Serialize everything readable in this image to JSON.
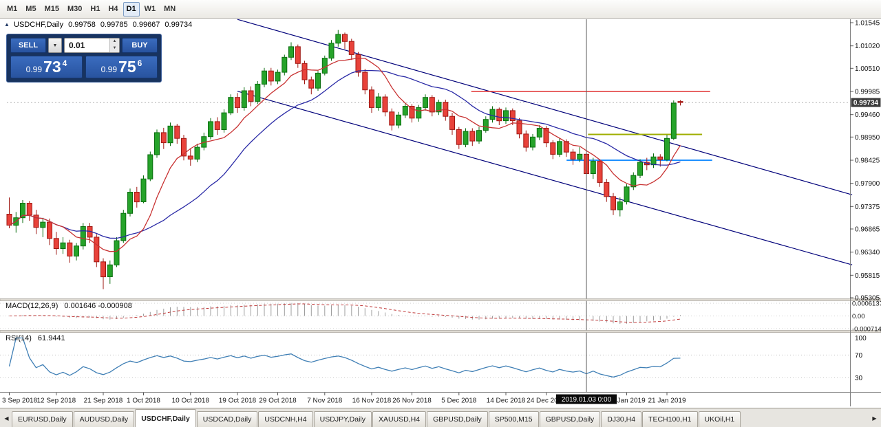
{
  "toolbar": {
    "timeframes": [
      {
        "label": "M1"
      },
      {
        "label": "M5"
      },
      {
        "label": "M15"
      },
      {
        "label": "M30"
      },
      {
        "label": "H1"
      },
      {
        "label": "H4"
      },
      {
        "label": "D1"
      },
      {
        "label": "W1"
      },
      {
        "label": "MN"
      }
    ],
    "active": "D1"
  },
  "chart_header": {
    "collapse_icon": "▲",
    "symbol": "USDCHF,Daily",
    "open": "0.99758",
    "high": "0.99785",
    "low": "0.99667",
    "close": "0.99734"
  },
  "trade_panel": {
    "sell_label": "SELL",
    "buy_label": "BUY",
    "volume": "0.01",
    "dropdown_icon": "▼",
    "spin_up_icon": "▲",
    "spin_down_icon": "▼",
    "sell_price": {
      "small": "0.99",
      "big": "73",
      "sup": "4"
    },
    "buy_price": {
      "small": "0.99",
      "big": "75",
      "sup": "6"
    }
  },
  "indicators": {
    "macd": {
      "label": "MACD(12,26,9)",
      "values": "0.001646 -0.000908",
      "axis_labels": [
        "0.0006137",
        "0.00",
        "-0.0007142"
      ],
      "fast": 12,
      "slow": 26,
      "signal": 9
    },
    "rsi": {
      "label": "RSI(14)",
      "value": "61.9441",
      "axis_labels": [
        "100",
        "70",
        "30"
      ],
      "period": 14
    }
  },
  "price_axis": {
    "labels": [
      "1.01545",
      "1.01020",
      "1.00510",
      "0.99985",
      "0.99460",
      "0.98950",
      "0.98425",
      "0.97900",
      "0.97375",
      "0.96865",
      "0.96340",
      "0.95815",
      "0.95305"
    ],
    "current": "0.99734"
  },
  "time_axis": {
    "ticks": [
      {
        "label": "3 Sep 2018",
        "i": 0
      },
      {
        "label": "12 Sep 2018",
        "i": 7
      },
      {
        "label": "21 Sep 2018",
        "i": 14
      },
      {
        "label": "1 Oct 2018",
        "i": 20
      },
      {
        "label": "10 Oct 2018",
        "i": 27
      },
      {
        "label": "19 Oct 2018",
        "i": 34
      },
      {
        "label": "29 Oct 2018",
        "i": 40
      },
      {
        "label": "7 Nov 2018",
        "i": 47
      },
      {
        "label": "16 Nov 2018",
        "i": 54
      },
      {
        "label": "26 Nov 2018",
        "i": 60
      },
      {
        "label": "5 Dec 2018",
        "i": 67
      },
      {
        "label": "14 Dec 2018",
        "i": 74
      },
      {
        "label": "24 Dec 2018",
        "i": 80
      },
      {
        "label": "11 Jan 2019",
        "i": 92
      },
      {
        "label": "21 Jan 2019",
        "i": 98
      }
    ],
    "crosshair": {
      "label": "2019.01.03 0:00",
      "i": 86
    }
  },
  "tabs": {
    "left_arrow": "◀",
    "right_arrow": "▶",
    "items": [
      {
        "label": "EURUSD,Daily",
        "active": false
      },
      {
        "label": "AUDUSD,Daily",
        "active": false
      },
      {
        "label": "USDCHF,Daily",
        "active": true
      },
      {
        "label": "USDCAD,Daily",
        "active": false
      },
      {
        "label": "USDCNH,H4",
        "active": false
      },
      {
        "label": "USDJPY,Daily",
        "active": false
      },
      {
        "label": "XAUUSD,H4",
        "active": false
      },
      {
        "label": "GBPUSD,Daily",
        "active": false
      },
      {
        "label": "SP500,M15",
        "active": false
      },
      {
        "label": "GBPUSD,Daily",
        "active": false
      },
      {
        "label": "DJ30,H4",
        "active": false
      },
      {
        "label": "TECH100,H1",
        "active": false
      },
      {
        "label": "UKOil,H1",
        "active": false
      }
    ]
  },
  "chart_data": {
    "type": "candlestick",
    "symbol": "USDCHF",
    "timeframe": "Daily",
    "ylim": [
      0.95305,
      1.01545
    ],
    "colors": {
      "up": "#26a32a",
      "up_border": "#0b6e10",
      "down": "#e8423a",
      "down_border": "#9e1712",
      "bg": "#ffffff"
    },
    "candles": [
      [
        0.972,
        0.9758,
        0.9688,
        0.9695
      ],
      [
        0.9695,
        0.9725,
        0.9678,
        0.9712
      ],
      [
        0.9712,
        0.9752,
        0.97,
        0.9745
      ],
      [
        0.9745,
        0.975,
        0.9705,
        0.9718
      ],
      [
        0.9718,
        0.973,
        0.9675,
        0.969
      ],
      [
        0.969,
        0.9712,
        0.9668,
        0.9702
      ],
      [
        0.9702,
        0.971,
        0.965,
        0.9665
      ],
      [
        0.9665,
        0.968,
        0.9628,
        0.9642
      ],
      [
        0.9642,
        0.9668,
        0.963,
        0.9655
      ],
      [
        0.9655,
        0.9662,
        0.961,
        0.9625
      ],
      [
        0.9625,
        0.9655,
        0.9615,
        0.9648
      ],
      [
        0.9648,
        0.97,
        0.964,
        0.9692
      ],
      [
        0.9692,
        0.97,
        0.9655,
        0.9668
      ],
      [
        0.9668,
        0.9675,
        0.96,
        0.9612
      ],
      [
        0.9612,
        0.962,
        0.955,
        0.9578
      ],
      [
        0.9578,
        0.9615,
        0.9562,
        0.9605
      ],
      [
        0.9605,
        0.9668,
        0.96,
        0.966
      ],
      [
        0.966,
        0.973,
        0.9655,
        0.9722
      ],
      [
        0.9722,
        0.9778,
        0.9715,
        0.977
      ],
      [
        0.977,
        0.9782,
        0.9735,
        0.9748
      ],
      [
        0.9748,
        0.9808,
        0.9745,
        0.98
      ],
      [
        0.98,
        0.9862,
        0.9795,
        0.9855
      ],
      [
        0.9855,
        0.9912,
        0.9848,
        0.9905
      ],
      [
        0.9905,
        0.9916,
        0.9868,
        0.9882
      ],
      [
        0.9882,
        0.9928,
        0.9875,
        0.992
      ],
      [
        0.992,
        0.9925,
        0.988,
        0.9892
      ],
      [
        0.9892,
        0.99,
        0.9842,
        0.9852
      ],
      [
        0.9852,
        0.987,
        0.983,
        0.9845
      ],
      [
        0.9845,
        0.988,
        0.9838,
        0.9872
      ],
      [
        0.9872,
        0.9905,
        0.9865,
        0.9896
      ],
      [
        0.9896,
        0.9938,
        0.989,
        0.993
      ],
      [
        0.993,
        0.994,
        0.99,
        0.9912
      ],
      [
        0.9912,
        0.9958,
        0.9905,
        0.995
      ],
      [
        0.995,
        0.9992,
        0.9945,
        0.9985
      ],
      [
        0.9985,
        0.9995,
        0.995,
        0.9962
      ],
      [
        0.9962,
        1.0008,
        0.9955,
        1.0
      ],
      [
        1.0,
        1.001,
        0.9965,
        0.9976
      ],
      [
        0.9976,
        1.0022,
        0.997,
        1.0015
      ],
      [
        1.0015,
        1.0052,
        1.0008,
        1.0045
      ],
      [
        1.0045,
        1.0052,
        1.0012,
        1.0022
      ],
      [
        1.0022,
        1.0048,
        1.0015,
        1.0042
      ],
      [
        1.0042,
        1.0082,
        1.0035,
        1.0076
      ],
      [
        1.0076,
        1.011,
        1.007,
        1.01
      ],
      [
        1.01,
        1.0105,
        1.0052,
        1.0062
      ],
      [
        1.0062,
        1.0068,
        1.0015,
        1.0025
      ],
      [
        1.0025,
        1.0032,
        0.9992,
        1.0006
      ],
      [
        1.0006,
        1.0045,
        1.0,
        1.004
      ],
      [
        1.004,
        1.008,
        1.0035,
        1.0074
      ],
      [
        1.0074,
        1.0115,
        1.0068,
        1.0108
      ],
      [
        1.0108,
        1.0138,
        1.01,
        1.0128
      ],
      [
        1.0128,
        1.0132,
        1.0095,
        1.0112
      ],
      [
        1.0112,
        1.0118,
        1.007,
        1.0082
      ],
      [
        1.0082,
        1.0088,
        1.0032,
        1.0042
      ],
      [
        1.0042,
        1.005,
        0.9992,
        1.0002
      ],
      [
        1.0002,
        1.001,
        0.995,
        0.9962
      ],
      [
        0.9962,
        0.9995,
        0.9955,
        0.9986
      ],
      [
        0.9986,
        0.9992,
        0.9942,
        0.9952
      ],
      [
        0.9952,
        0.996,
        0.991,
        0.9922
      ],
      [
        0.9922,
        0.9952,
        0.9915,
        0.9945
      ],
      [
        0.9945,
        0.9972,
        0.9938,
        0.9965
      ],
      [
        0.9965,
        0.997,
        0.9928,
        0.9938
      ],
      [
        0.9938,
        0.9968,
        0.993,
        0.9962
      ],
      [
        0.9962,
        0.9992,
        0.9955,
        0.9985
      ],
      [
        0.9985,
        0.999,
        0.9942,
        0.9952
      ],
      [
        0.9952,
        0.998,
        0.9945,
        0.9974
      ],
      [
        0.9974,
        0.998,
        0.9932,
        0.9942
      ],
      [
        0.9942,
        0.995,
        0.99,
        0.9912
      ],
      [
        0.9912,
        0.9918,
        0.9868,
        0.9878
      ],
      [
        0.9878,
        0.9915,
        0.9872,
        0.9908
      ],
      [
        0.9908,
        0.9915,
        0.9875,
        0.9886
      ],
      [
        0.9886,
        0.9918,
        0.988,
        0.991
      ],
      [
        0.991,
        0.9942,
        0.9905,
        0.9935
      ],
      [
        0.9935,
        0.9965,
        0.9928,
        0.9958
      ],
      [
        0.9958,
        0.9962,
        0.9922,
        0.9932
      ],
      [
        0.9932,
        0.9962,
        0.9925,
        0.9955
      ],
      [
        0.9955,
        0.996,
        0.9922,
        0.9932
      ],
      [
        0.9932,
        0.9938,
        0.9892,
        0.9902
      ],
      [
        0.9902,
        0.991,
        0.9862,
        0.9872
      ],
      [
        0.9872,
        0.9902,
        0.9865,
        0.9895
      ],
      [
        0.9895,
        0.9922,
        0.9888,
        0.9915
      ],
      [
        0.9915,
        0.992,
        0.9872,
        0.9882
      ],
      [
        0.9882,
        0.9888,
        0.9845,
        0.9856
      ],
      [
        0.9856,
        0.9892,
        0.985,
        0.9885
      ],
      [
        0.9885,
        0.989,
        0.985,
        0.9861
      ],
      [
        0.9861,
        0.9868,
        0.9832,
        0.9845
      ],
      [
        0.9845,
        0.9872,
        0.9838,
        0.9856
      ],
      [
        0.9856,
        0.986,
        0.977,
        0.9812
      ],
      [
        0.9812,
        0.9848,
        0.98,
        0.984
      ],
      [
        0.984,
        0.9845,
        0.9782,
        0.9792
      ],
      [
        0.9792,
        0.98,
        0.9748,
        0.976
      ],
      [
        0.976,
        0.9768,
        0.9718,
        0.973
      ],
      [
        0.973,
        0.9758,
        0.9715,
        0.9748
      ],
      [
        0.9748,
        0.9788,
        0.9742,
        0.9782
      ],
      [
        0.9782,
        0.9815,
        0.9775,
        0.9808
      ],
      [
        0.9808,
        0.9845,
        0.9802,
        0.9838
      ],
      [
        0.9838,
        0.9848,
        0.982,
        0.9832
      ],
      [
        0.9832,
        0.9858,
        0.9825,
        0.985
      ],
      [
        0.985,
        0.9856,
        0.9828,
        0.9844
      ],
      [
        0.9844,
        0.99,
        0.984,
        0.9892
      ],
      [
        0.9892,
        0.9978,
        0.9888,
        0.9972
      ],
      [
        0.99758,
        0.99785,
        0.99667,
        0.99734
      ]
    ],
    "overlays": {
      "ma_fast": {
        "period": 8,
        "color": "#c83232"
      },
      "ma_slow": {
        "period": 20,
        "color": "#2a2aa6"
      },
      "channel": {
        "color": "#00007a",
        "lines": [
          [
            [
              34,
              1.0162
            ],
            [
              125.6,
              0.9764
            ]
          ],
          [
            [
              34,
              0.9999
            ],
            [
              125.6,
              0.9605
            ]
          ]
        ]
      },
      "hlines": [
        {
          "price": 0.99985,
          "from": 69.2,
          "to": 104.8,
          "color": "#e03030",
          "width": 1.4
        },
        {
          "price": 0.9901,
          "from": 86.6,
          "to": 103.6,
          "color": "#9fae00",
          "width": 2
        },
        {
          "price": 0.98425,
          "from": 83.4,
          "to": 105.1,
          "color": "#1e90ff",
          "width": 2
        }
      ],
      "vline": {
        "i": 86,
        "color": "#5a5a5a"
      },
      "bid": 0.99734
    }
  }
}
